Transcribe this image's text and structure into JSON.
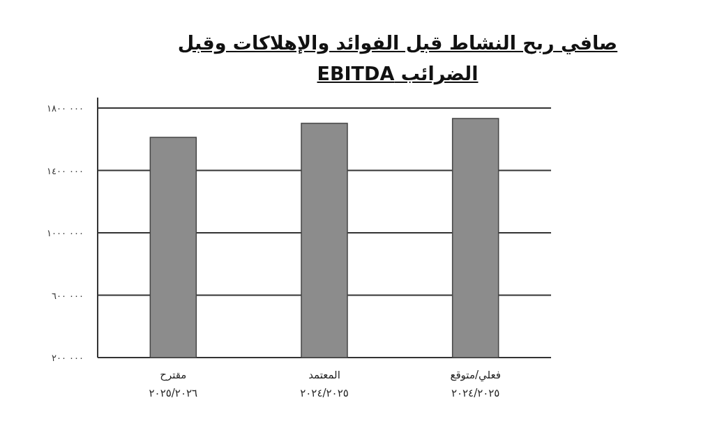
{
  "chart_data": {
    "type": "bar",
    "title": "صافي ربح النشاط قبل الفوائد والإهلاكات وقبل الضرائب EBITDA",
    "categories": [
      "مقترح\n٢٠٢٥/٢٠٢٦",
      "المعتمد\n٢٠٢٤/٢٠٢٥",
      "فعلي/متوقع\n٢٠٢٤/٢٠٢٥"
    ],
    "values": [
      1612000,
      1702000,
      1733000
    ],
    "color": "#8c8c8c",
    "ylim": [
      200000,
      1800000
    ],
    "yticks": [
      {
        "value": 200000,
        "label": "٢٠٠ ٠٠٠"
      },
      {
        "value": 600000,
        "label": "٦٠٠ ٠٠٠"
      },
      {
        "value": 1000000,
        "label": "١٠٠٠ ٠٠٠"
      },
      {
        "value": 1400000,
        "label": "١٤٠٠ ٠٠٠"
      },
      {
        "value": 1800000,
        "label": "١٨٠٠ ٠٠٠"
      }
    ],
    "grid": "y"
  }
}
